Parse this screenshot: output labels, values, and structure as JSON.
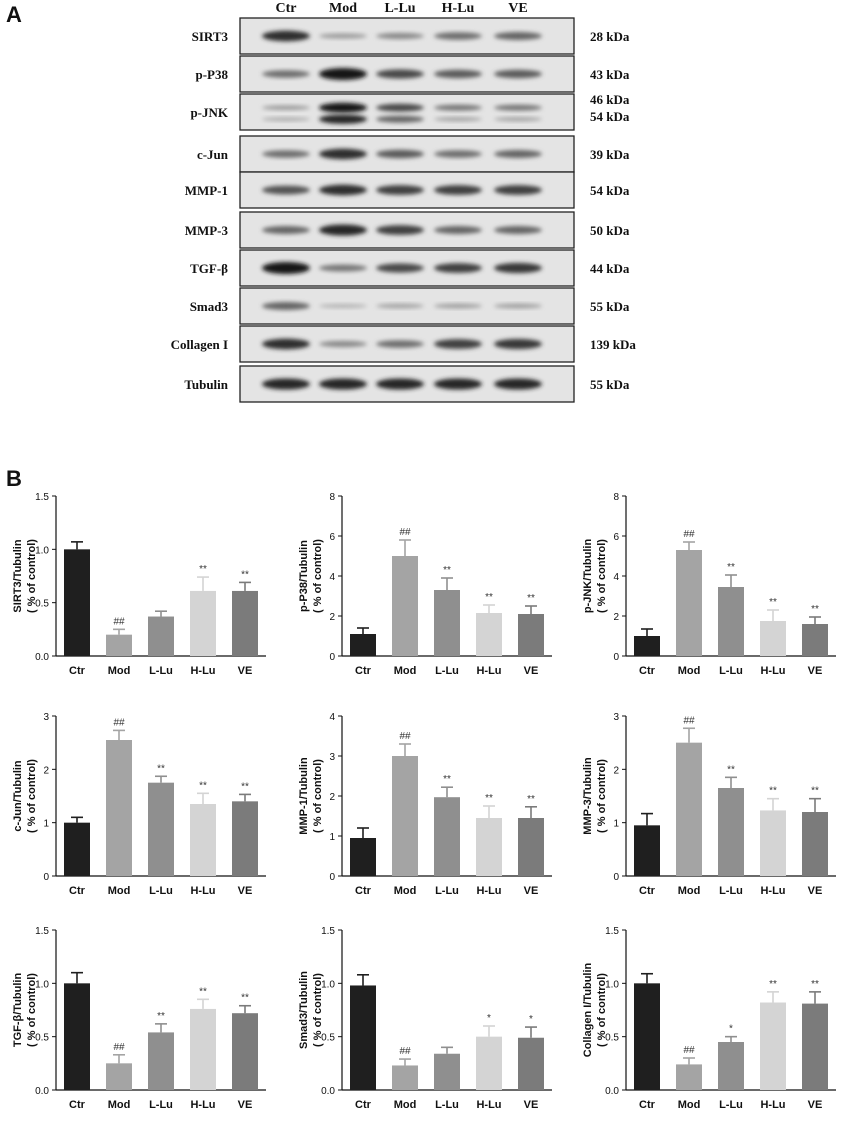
{
  "panel_a": {
    "label": "A",
    "lanes": [
      "Ctr",
      "Mod",
      "L-Lu",
      "H-Lu",
      "VE"
    ],
    "rows": [
      {
        "protein": "SIRT3",
        "kda": [
          "28 kDa"
        ],
        "bands": [
          [
            0.85,
            0.25,
            0.35,
            0.5,
            0.55
          ]
        ]
      },
      {
        "protein": "p-P38",
        "kda": [
          "43 kDa"
        ],
        "bands": [
          [
            0.5,
            1.0,
            0.7,
            0.6,
            0.6
          ]
        ]
      },
      {
        "protein": "p-JNK",
        "kda": [
          "46 kDa",
          "54 kDa"
        ],
        "bands": [
          [
            0.25,
            1.0,
            0.7,
            0.45,
            0.45
          ],
          [
            0.15,
            0.9,
            0.55,
            0.2,
            0.2
          ]
        ]
      },
      {
        "protein": "c-Jun",
        "kda": [
          "39 kDa"
        ],
        "bands": [
          [
            0.5,
            0.85,
            0.6,
            0.5,
            0.55
          ]
        ]
      },
      {
        "protein": "MMP-1",
        "kda": [
          "54 kDa"
        ],
        "bands": [
          [
            0.65,
            0.85,
            0.75,
            0.75,
            0.75
          ]
        ]
      },
      {
        "protein": "MMP-3",
        "kda": [
          "50 kDa"
        ],
        "bands": [
          [
            0.55,
            0.9,
            0.75,
            0.55,
            0.55
          ]
        ]
      },
      {
        "protein": "TGF-β",
        "kda": [
          "44 kDa"
        ],
        "bands": [
          [
            1.0,
            0.45,
            0.7,
            0.75,
            0.8
          ]
        ]
      },
      {
        "protein": "Smad3",
        "kda": [
          "55 kDa"
        ],
        "bands": [
          [
            0.55,
            0.12,
            0.2,
            0.22,
            0.22
          ]
        ]
      },
      {
        "protein": "Collagen I",
        "kda": [
          "139 kDa"
        ],
        "bands": [
          [
            0.85,
            0.35,
            0.5,
            0.75,
            0.8
          ]
        ]
      },
      {
        "protein": "Tubulin",
        "kda": [
          "55 kDa"
        ],
        "bands": [
          [
            0.9,
            0.9,
            0.9,
            0.9,
            0.9
          ]
        ]
      }
    ]
  },
  "panel_b": {
    "label": "B"
  },
  "chart_colors": [
    "#1f1f1f",
    "#a4a4a4",
    "#8f8f8f",
    "#d4d4d4",
    "#7b7b7b"
  ],
  "chart_data": [
    {
      "type": "bar",
      "ylabel": "SIRT3/Tubulin",
      "ylabel2": "( % of control)",
      "categories": [
        "Ctr",
        "Mod",
        "L-Lu",
        "H-Lu",
        "VE"
      ],
      "values": [
        1.0,
        0.2,
        0.37,
        0.61,
        0.61
      ],
      "errors": [
        0.07,
        0.05,
        0.05,
        0.13,
        0.08
      ],
      "annotations": [
        "",
        "##",
        "",
        "**",
        "**"
      ],
      "ylim": [
        0,
        1.5
      ],
      "yticks": [
        "0.0",
        "0.5",
        "1.0",
        "1.5"
      ]
    },
    {
      "type": "bar",
      "ylabel": "p-P38/Tubulin",
      "ylabel2": "( % of control)",
      "categories": [
        "Ctr",
        "Mod",
        "L-Lu",
        "H-Lu",
        "VE"
      ],
      "values": [
        1.1,
        5.0,
        3.3,
        2.15,
        2.1
      ],
      "errors": [
        0.3,
        0.8,
        0.6,
        0.4,
        0.4
      ],
      "annotations": [
        "",
        "##",
        "**",
        "**",
        "**"
      ],
      "ylim": [
        0,
        8
      ],
      "yticks": [
        "0",
        "2",
        "4",
        "6",
        "8"
      ]
    },
    {
      "type": "bar",
      "ylabel": "p-JNK/Tubulin",
      "ylabel2": "( % of control)",
      "categories": [
        "Ctr",
        "Mod",
        "L-Lu",
        "H-Lu",
        "VE"
      ],
      "values": [
        1.0,
        5.3,
        3.45,
        1.75,
        1.6
      ],
      "errors": [
        0.35,
        0.4,
        0.6,
        0.55,
        0.35
      ],
      "annotations": [
        "",
        "##",
        "**",
        "**",
        "**"
      ],
      "ylim": [
        0,
        8
      ],
      "yticks": [
        "0",
        "2",
        "4",
        "6",
        "8"
      ]
    },
    {
      "type": "bar",
      "ylabel": "c-Jun/Tubulin",
      "ylabel2": "( % of control)",
      "categories": [
        "Ctr",
        "Mod",
        "L-Lu",
        "H-Lu",
        "VE"
      ],
      "values": [
        1.0,
        2.55,
        1.75,
        1.35,
        1.4
      ],
      "errors": [
        0.1,
        0.18,
        0.12,
        0.2,
        0.13
      ],
      "annotations": [
        "",
        "##",
        "**",
        "**",
        "**"
      ],
      "ylim": [
        0,
        3
      ],
      "yticks": [
        "0",
        "1",
        "2",
        "3"
      ]
    },
    {
      "type": "bar",
      "ylabel": "MMP-1/Tubulin",
      "ylabel2": "( % of control)",
      "categories": [
        "Ctr",
        "Mod",
        "L-Lu",
        "H-Lu",
        "VE"
      ],
      "values": [
        0.95,
        3.0,
        1.97,
        1.45,
        1.45
      ],
      "errors": [
        0.25,
        0.3,
        0.25,
        0.3,
        0.28
      ],
      "annotations": [
        "",
        "##",
        "**",
        "**",
        "**"
      ],
      "ylim": [
        0,
        4
      ],
      "yticks": [
        "0",
        "1",
        "2",
        "3",
        "4"
      ]
    },
    {
      "type": "bar",
      "ylabel": "MMP-3/Tubulin",
      "ylabel2": "( % of control)",
      "categories": [
        "Ctr",
        "Mod",
        "L-Lu",
        "H-Lu",
        "VE"
      ],
      "values": [
        0.95,
        2.5,
        1.65,
        1.23,
        1.2
      ],
      "errors": [
        0.22,
        0.27,
        0.2,
        0.22,
        0.25
      ],
      "annotations": [
        "",
        "##",
        "**",
        "**",
        "**"
      ],
      "ylim": [
        0,
        3
      ],
      "yticks": [
        "0",
        "1",
        "2",
        "3"
      ]
    },
    {
      "type": "bar",
      "ylabel": "TGF-β/Tubulin",
      "ylabel2": "( % of control)",
      "categories": [
        "Ctr",
        "Mod",
        "L-Lu",
        "H-Lu",
        "VE"
      ],
      "values": [
        1.0,
        0.25,
        0.54,
        0.76,
        0.72
      ],
      "errors": [
        0.1,
        0.08,
        0.08,
        0.09,
        0.07
      ],
      "annotations": [
        "",
        "##",
        "**",
        "**",
        "**"
      ],
      "ylim": [
        0,
        1.5
      ],
      "yticks": [
        "0.0",
        "0.5",
        "1.0",
        "1.5"
      ]
    },
    {
      "type": "bar",
      "ylabel": "Smad3/Tubulin",
      "ylabel2": "( % of control)",
      "categories": [
        "Ctr",
        "Mod",
        "L-Lu",
        "H-Lu",
        "VE"
      ],
      "values": [
        0.98,
        0.23,
        0.34,
        0.5,
        0.49
      ],
      "errors": [
        0.1,
        0.06,
        0.06,
        0.1,
        0.1
      ],
      "annotations": [
        "",
        "##",
        "",
        "*",
        "*"
      ],
      "ylim": [
        0,
        1.5
      ],
      "yticks": [
        "0.0",
        "0.5",
        "1.0",
        "1.5"
      ]
    },
    {
      "type": "bar",
      "ylabel": "Collagen I/Tubulin",
      "ylabel2": "( % of control)",
      "categories": [
        "Ctr",
        "Mod",
        "L-Lu",
        "H-Lu",
        "VE"
      ],
      "values": [
        1.0,
        0.24,
        0.45,
        0.82,
        0.81
      ],
      "errors": [
        0.09,
        0.06,
        0.05,
        0.1,
        0.11
      ],
      "annotations": [
        "",
        "##",
        "*",
        "**",
        "**"
      ],
      "ylim": [
        0,
        1.5
      ],
      "yticks": [
        "0.0",
        "0.5",
        "1.0",
        "1.5"
      ]
    }
  ]
}
